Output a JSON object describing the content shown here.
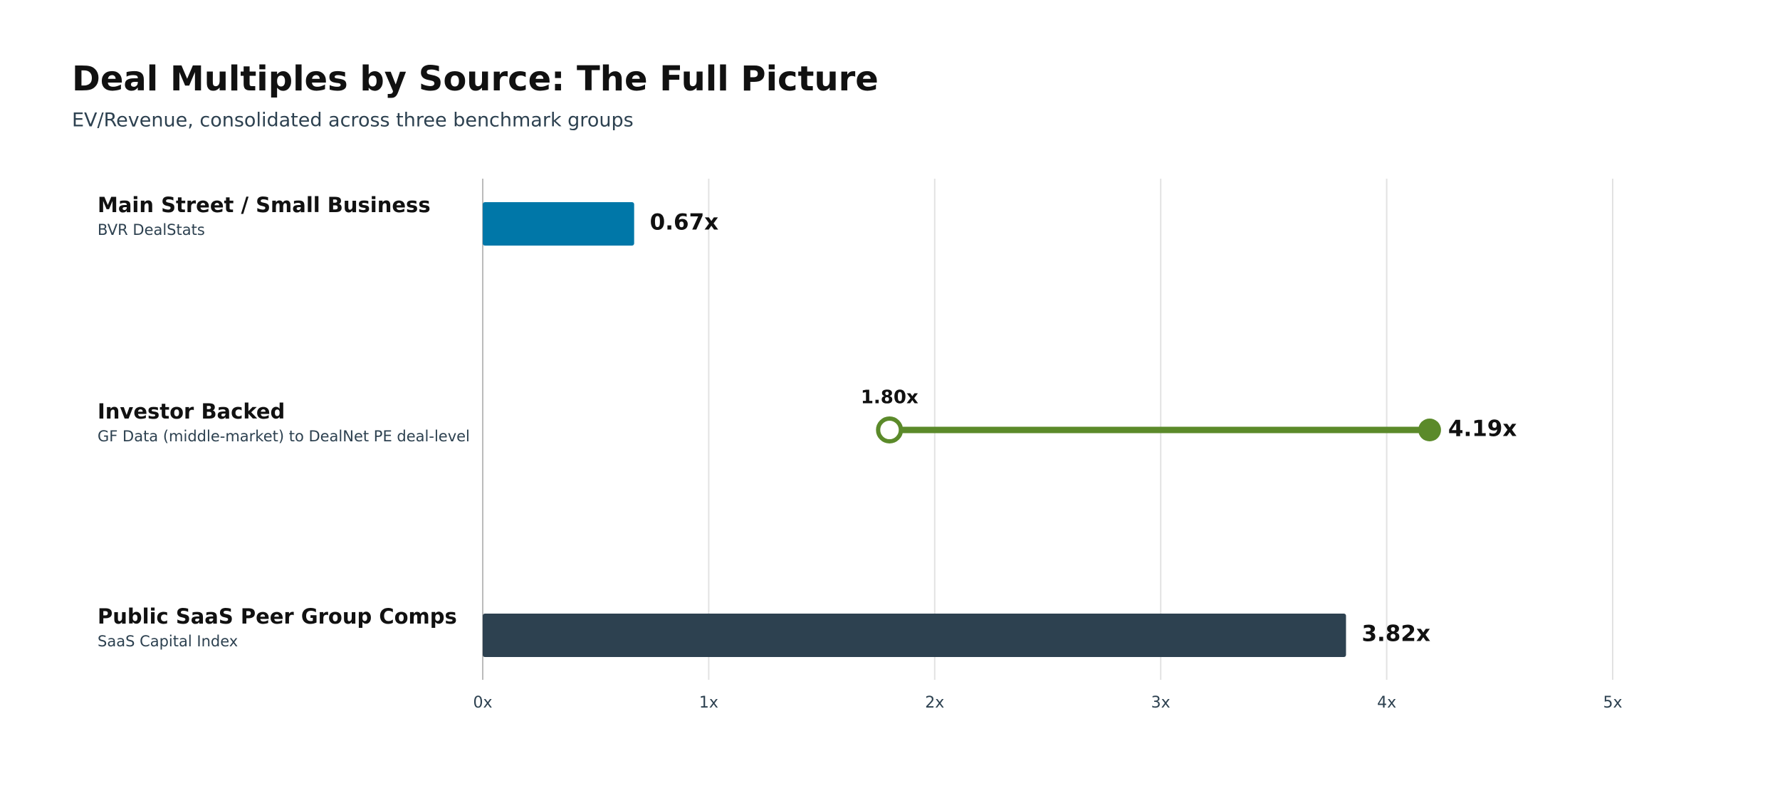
{
  "chart_data": {
    "type": "bar",
    "title": "Deal Multiples by Source: The Full Picture",
    "subtitle": "EV/Revenue, consolidated across three benchmark groups",
    "rows": [
      {
        "label": "Main Street / Small Business",
        "source": "BVR DealStats",
        "kind": "bar",
        "value": 0.67,
        "value_label": "0.67x",
        "color": "#0077a8"
      },
      {
        "label": "Investor Backed",
        "source": "GF Data (middle-market) to DealNet PE deal-level",
        "kind": "range",
        "values": [
          1.8,
          4.19
        ],
        "value_labels": [
          "1.80x",
          "4.19x"
        ],
        "color": "#5b8a2a"
      },
      {
        "label": "Public SaaS Peer Group Comps",
        "source": "SaaS Capital Index",
        "kind": "bar",
        "value": 3.82,
        "value_label": "3.82x",
        "color": "#2d4150"
      }
    ],
    "xlim": [
      0,
      5
    ],
    "xticks": [
      {
        "value": 0,
        "label": "0x"
      },
      {
        "value": 1,
        "label": "1x"
      },
      {
        "value": 2,
        "label": "2x"
      },
      {
        "value": 3,
        "label": "3x"
      },
      {
        "value": 4,
        "label": "4x"
      },
      {
        "value": 5,
        "label": "5x"
      }
    ],
    "grid": true
  }
}
